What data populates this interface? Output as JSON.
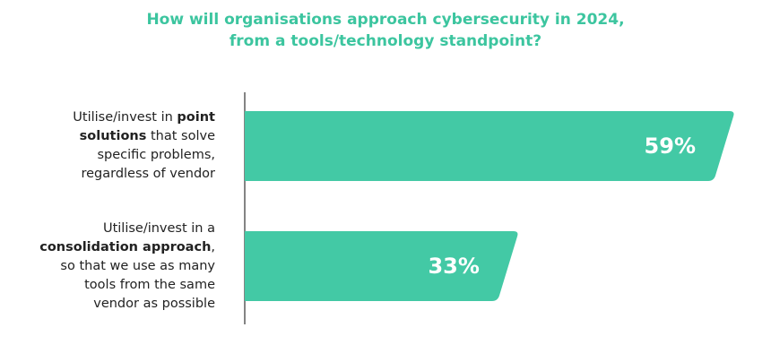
{
  "chart_data": {
    "type": "hbar",
    "title": "How will organisations approach cybersecurity in 2024, from a tools/technology standpoint?",
    "categories": [
      "Utilise/invest in point solutions that solve specific problems, regardless of vendor",
      "Utilise/invest in a consolidation approach, so that we use as many tools from the same vendor as possible"
    ],
    "emphasis": [
      "point solutions",
      "consolidation approach"
    ],
    "values": [
      59,
      33
    ],
    "value_labels": [
      "59%",
      "33%"
    ],
    "color": "#43c9a5"
  }
}
